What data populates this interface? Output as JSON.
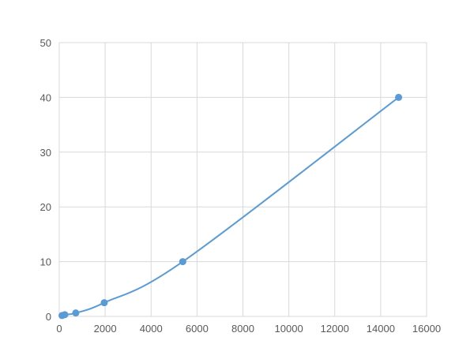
{
  "chart_data": {
    "type": "scatter",
    "title": "",
    "xlabel": "",
    "ylabel": "",
    "xlim": [
      0,
      16000
    ],
    "ylim": [
      0,
      50
    ],
    "xticks": [
      "0",
      "2000",
      "4000",
      "6000",
      "8000",
      "10000",
      "12000",
      "14000",
      "16000"
    ],
    "yticks": [
      "0",
      "10",
      "20",
      "30",
      "40",
      "50"
    ],
    "grid": true,
    "series": [
      {
        "x": [
          120,
          240,
          720,
          1960,
          5380,
          14780
        ],
        "y": [
          0.156,
          0.313,
          0.625,
          2.5,
          10,
          40
        ]
      }
    ],
    "line_style": "smooth",
    "color": "#5b9bd5"
  }
}
